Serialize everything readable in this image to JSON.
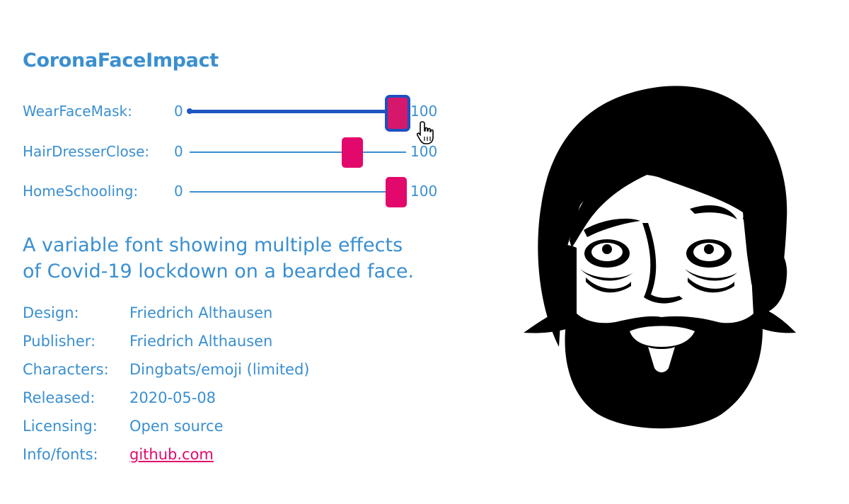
{
  "title": "CoronaFaceImpact",
  "sliders": [
    {
      "label": "WearFaceMask:",
      "min": "0",
      "max": "100",
      "value_fraction": 0.96,
      "focused": true
    },
    {
      "label": "HairDresserClose:",
      "min": "0",
      "max": "100",
      "value_fraction": 0.75,
      "focused": false
    },
    {
      "label": "HomeSchooling:",
      "min": "0",
      "max": "100",
      "value_fraction": 0.94,
      "focused": false
    }
  ],
  "description": {
    "line1": "A variable font showing multiple effects",
    "line2": "of Covid-19 lockdown on a bearded face."
  },
  "meta": [
    {
      "key": "Design:",
      "value": "Friedrich Althausen"
    },
    {
      "key": "Publisher:",
      "value": "Friedrich Althausen"
    },
    {
      "key": "Characters:",
      "value": "Dingbats/emoji (limited)"
    },
    {
      "key": "Released:",
      "value": "2020-05-08"
    },
    {
      "key": "Licensing:",
      "value": "Open source"
    },
    {
      "key": "Info/fonts:",
      "value": "github.com"
    }
  ],
  "colors": {
    "text": "#3a8fd0",
    "accent": "#e3086b",
    "focus": "#1f4fc0",
    "face": "#000000"
  },
  "icons": {
    "cursor": "hand-pointer-icon",
    "illustration": "bearded-face-icon"
  }
}
